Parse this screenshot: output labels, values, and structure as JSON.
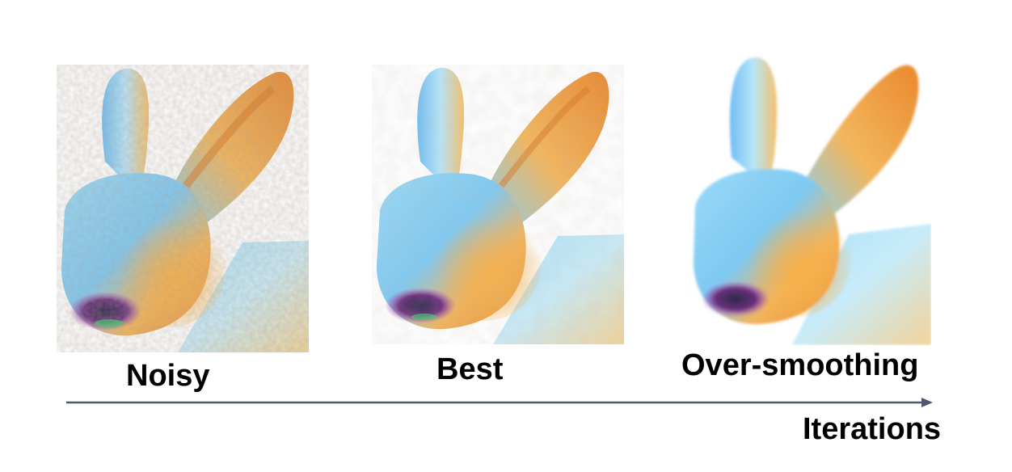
{
  "figure": {
    "panels": [
      {
        "label": "Noisy"
      },
      {
        "label": "Best"
      },
      {
        "label": "Over-smoothing"
      }
    ],
    "axis_label": "Iterations"
  },
  "colors": {
    "orange": "#F6A23C",
    "blue": "#8ED4F2",
    "magenta": "#B24BC9",
    "green": "#3CD06A",
    "arrow": "#4D5A6E"
  }
}
